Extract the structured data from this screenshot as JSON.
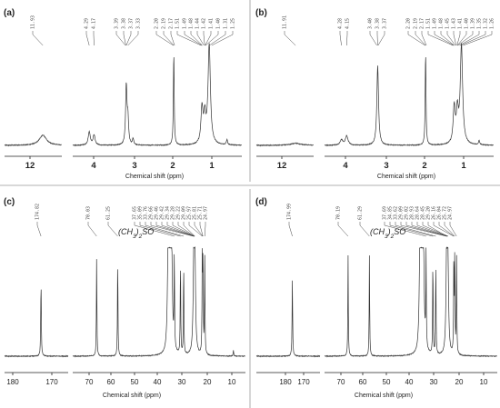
{
  "chart_data": [
    {
      "type": "line",
      "panel": "(a)",
      "nucleus": "1H",
      "xlabel": "Chemical shift (ppm)",
      "x_reversed": true,
      "axis_break": [
        5,
        11.5
      ],
      "xlim": [
        0.5,
        12.8
      ],
      "ticks": [
        "12",
        "4",
        "3",
        "2",
        "1"
      ],
      "peak_labels": [
        "11.93",
        "4.29",
        "4.17",
        "3.39",
        "3.38",
        "3.37",
        "3.33",
        "2.20",
        "2.19",
        "2.17",
        "1.51",
        "1.49",
        "1.48",
        "1.44",
        "1.42",
        "1.41",
        "1.40",
        "1.31",
        "1.25"
      ],
      "series": [
        {
          "peaks": [
            {
              "x": 11.93,
              "height": 0.1,
              "width": 0.1
            },
            {
              "x": 4.29,
              "height": 0.13,
              "width": 0.03
            },
            {
              "x": 4.17,
              "height": 0.1,
              "width": 0.03
            },
            {
              "x": 3.37,
              "height": 0.58,
              "width": 0.02
            },
            {
              "x": 3.33,
              "height": 0.25,
              "width": 0.02
            },
            {
              "x": 3.2,
              "height": 0.06,
              "width": 0.02
            },
            {
              "x": 2.19,
              "height": 0.92,
              "width": 0.012
            },
            {
              "x": 1.49,
              "height": 0.35,
              "width": 0.03
            },
            {
              "x": 1.42,
              "height": 0.26,
              "width": 0.03
            },
            {
              "x": 1.31,
              "height": 0.98,
              "width": 0.035
            },
            {
              "x": 0.87,
              "height": 0.05,
              "width": 0.02
            }
          ]
        }
      ]
    },
    {
      "type": "line",
      "panel": "(b)",
      "nucleus": "1H",
      "xlabel": "Chemical shift (ppm)",
      "x_reversed": true,
      "axis_break": [
        5,
        11.5
      ],
      "xlim": [
        0.5,
        12.8
      ],
      "ticks": [
        "12",
        "4",
        "3",
        "2",
        "1"
      ],
      "peak_labels": [
        "11.91",
        "4.28",
        "4.15",
        "3.40",
        "3.38",
        "3.37",
        "2.20",
        "2.19",
        "2.17",
        "1.51",
        "1.49",
        "1.48",
        "1.45",
        "1.43",
        "1.41",
        "1.40",
        "1.39",
        "1.35",
        "1.32",
        "1.26"
      ],
      "series": [
        {
          "peaks": [
            {
              "x": 11.91,
              "height": 0.02,
              "width": 0.15
            },
            {
              "x": 4.28,
              "height": 0.05,
              "width": 0.04
            },
            {
              "x": 4.15,
              "height": 0.09,
              "width": 0.04
            },
            {
              "x": 3.38,
              "height": 0.78,
              "width": 0.025
            },
            {
              "x": 2.19,
              "height": 0.92,
              "width": 0.012
            },
            {
              "x": 1.48,
              "height": 0.36,
              "width": 0.03
            },
            {
              "x": 1.4,
              "height": 0.3,
              "width": 0.03
            },
            {
              "x": 1.3,
              "height": 0.97,
              "width": 0.035
            },
            {
              "x": 0.86,
              "height": 0.04,
              "width": 0.02
            }
          ]
        }
      ]
    },
    {
      "type": "line",
      "panel": "(c)",
      "nucleus": "13C",
      "xlabel": "Chemical shift (ppm)",
      "x_reversed": true,
      "axis_break": [
        80,
        165
      ],
      "xlim": [
        8,
        188
      ],
      "ticks": [
        "180",
        "170",
        "70",
        "60",
        "50",
        "40",
        "30",
        "20",
        "10"
      ],
      "solvent_label": "(CH3)2SO",
      "peak_labels_left": [
        "174.82"
      ],
      "peak_labels_mid": [
        "70.03",
        "61.25"
      ],
      "peak_labels_right": [
        "37.65",
        "35.09",
        "33.76",
        "29.66",
        "29.46",
        "29.42",
        "29.34",
        "29.28",
        "29.22",
        "29.09",
        "25.97",
        "25.81",
        "25.71",
        "24.97"
      ],
      "series": [
        {
          "peaks": [
            {
              "x": 174.82,
              "height": 0.72,
              "width": 0.12
            },
            {
              "x": 70.03,
              "height": 0.95,
              "width": 0.12
            },
            {
              "x": 61.25,
              "height": 0.95,
              "width": 0.12
            },
            {
              "x": 40.2,
              "height": 1.0,
              "width": 0.35
            },
            {
              "x": 39.5,
              "height": 1.0,
              "width": 0.35
            },
            {
              "x": 38.8,
              "height": 0.98,
              "width": 0.35
            },
            {
              "x": 37.65,
              "height": 0.9,
              "width": 0.12
            },
            {
              "x": 35.09,
              "height": 0.92,
              "width": 0.12
            },
            {
              "x": 33.76,
              "height": 0.88,
              "width": 0.12
            },
            {
              "x": 29.5,
              "height": 0.93,
              "width": 0.3
            },
            {
              "x": 29.1,
              "height": 0.91,
              "width": 0.3
            },
            {
              "x": 26.0,
              "height": 0.94,
              "width": 0.12
            },
            {
              "x": 25.7,
              "height": 0.9,
              "width": 0.12
            },
            {
              "x": 24.97,
              "height": 0.92,
              "width": 0.12
            },
            {
              "x": 13.0,
              "height": 0.06,
              "width": 0.12
            }
          ]
        }
      ]
    },
    {
      "type": "line",
      "panel": "(d)",
      "nucleus": "13C",
      "xlabel": "Chemical shift (ppm)",
      "x_reversed": true,
      "axis_break": [
        80,
        165
      ],
      "xlim": [
        8,
        188
      ],
      "ticks": [
        "180",
        "170",
        "70",
        "60",
        "50",
        "40",
        "30",
        "20",
        "10"
      ],
      "solvent_label": "(CH3)2SO",
      "peak_labels_left": [
        "174.99"
      ],
      "peak_labels_mid": [
        "70.19",
        "61.29"
      ],
      "peak_labels_right": [
        "37.69",
        "34.85",
        "33.62",
        "29.09",
        "29.02",
        "28.93",
        "28.64",
        "28.45",
        "29.20",
        "26.16",
        "26.04",
        "25.72",
        "24.97"
      ],
      "series": [
        {
          "peaks": [
            {
              "x": 174.99,
              "height": 0.72,
              "width": 0.12
            },
            {
              "x": 70.19,
              "height": 0.95,
              "width": 0.12
            },
            {
              "x": 61.29,
              "height": 0.95,
              "width": 0.12
            },
            {
              "x": 40.2,
              "height": 1.0,
              "width": 0.35
            },
            {
              "x": 39.5,
              "height": 1.0,
              "width": 0.35
            },
            {
              "x": 38.8,
              "height": 0.98,
              "width": 0.35
            },
            {
              "x": 37.69,
              "height": 0.9,
              "width": 0.12
            },
            {
              "x": 34.85,
              "height": 0.92,
              "width": 0.12
            },
            {
              "x": 33.62,
              "height": 0.88,
              "width": 0.12
            },
            {
              "x": 29.1,
              "height": 0.93,
              "width": 0.3
            },
            {
              "x": 28.6,
              "height": 0.91,
              "width": 0.3
            },
            {
              "x": 26.1,
              "height": 0.94,
              "width": 0.12
            },
            {
              "x": 25.72,
              "height": 0.9,
              "width": 0.12
            },
            {
              "x": 24.97,
              "height": 0.92,
              "width": 0.12
            }
          ]
        }
      ]
    }
  ]
}
